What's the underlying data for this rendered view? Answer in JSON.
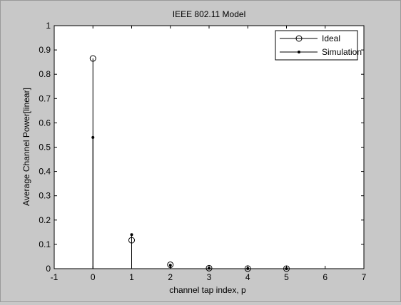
{
  "chart_data": {
    "type": "stem",
    "title": "IEEE 802.11 Model",
    "xlabel": "channel tap index, p",
    "ylabel": "Average Channel Power[linear]",
    "xlim": [
      -1,
      7
    ],
    "ylim": [
      0,
      1
    ],
    "xticks": [
      -1,
      0,
      1,
      2,
      3,
      4,
      5,
      6,
      7
    ],
    "yticks": [
      0,
      0.1,
      0.2,
      0.3,
      0.4,
      0.5,
      0.6,
      0.7,
      0.8,
      0.9,
      1
    ],
    "grid": false,
    "legend_position": "top-right",
    "series": [
      {
        "name": "Ideal",
        "marker": "circle",
        "x": [
          0,
          1,
          2,
          3,
          4,
          5
        ],
        "values": [
          0.865,
          0.117,
          0.016,
          0.002,
          0.0003,
          4e-05
        ]
      },
      {
        "name": "Simulation",
        "marker": "dot",
        "x": [
          0,
          1,
          2,
          3,
          4,
          5
        ],
        "values": [
          0.54,
          0.14,
          0.014,
          0.002,
          0.0003,
          5e-05
        ]
      }
    ]
  }
}
